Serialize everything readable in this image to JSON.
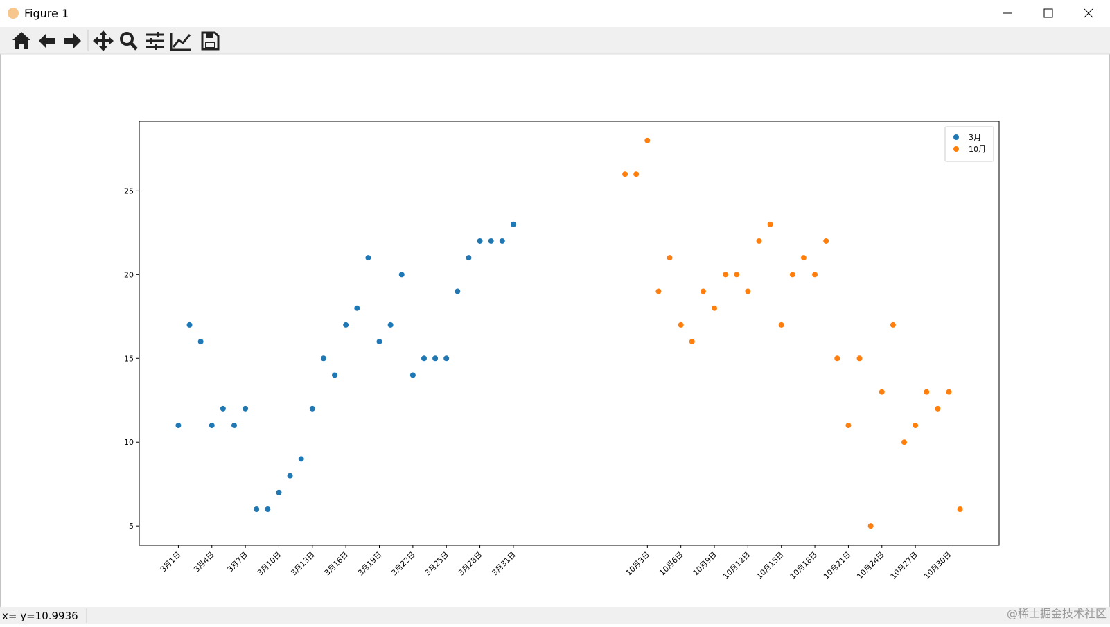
{
  "window": {
    "title": "Figure 1",
    "status": "x= y=10.9936",
    "watermark": "@稀土掘金技术社区"
  },
  "chart_data": {
    "type": "scatter",
    "series": [
      {
        "name": "3月",
        "color": "#1f77b4",
        "x": [
          0,
          1,
          2,
          3,
          4,
          5,
          6,
          7,
          8,
          9,
          10,
          11,
          12,
          13,
          14,
          15,
          16,
          17,
          18,
          19,
          20,
          21,
          22,
          23,
          24,
          25,
          26,
          27,
          28,
          29,
          30
        ],
        "values": [
          11,
          17,
          16,
          11,
          12,
          11,
          12,
          6,
          6,
          7,
          8,
          9,
          12,
          15,
          14,
          17,
          18,
          21,
          16,
          17,
          20,
          14,
          15,
          15,
          15,
          19,
          21,
          22,
          22,
          22,
          23
        ]
      },
      {
        "name": "10月",
        "color": "#ff7f0e",
        "x": [
          40,
          41,
          42,
          43,
          44,
          45,
          46,
          47,
          48,
          49,
          50,
          51,
          52,
          53,
          54,
          55,
          56,
          57,
          58,
          59,
          60,
          61,
          62,
          63,
          64,
          65,
          66,
          67,
          68,
          69,
          70
        ],
        "values": [
          26,
          26,
          28,
          19,
          21,
          17,
          16,
          19,
          18,
          20,
          20,
          19,
          22,
          23,
          17,
          20,
          21,
          20,
          22,
          15,
          11,
          15,
          5,
          13,
          17,
          10,
          11,
          13,
          12,
          13,
          6
        ]
      }
    ],
    "xlim": [
      -3.5,
      73.5
    ],
    "ylim": [
      3.85,
      29.15
    ],
    "xticks": [
      {
        "value": 0,
        "label": "3月1日"
      },
      {
        "value": 3,
        "label": "3月4日"
      },
      {
        "value": 6,
        "label": "3月7日"
      },
      {
        "value": 9,
        "label": "3月10日"
      },
      {
        "value": 12,
        "label": "3月13日"
      },
      {
        "value": 15,
        "label": "3月16日"
      },
      {
        "value": 18,
        "label": "3月19日"
      },
      {
        "value": 21,
        "label": "3月22日"
      },
      {
        "value": 24,
        "label": "3月25日"
      },
      {
        "value": 27,
        "label": "3月28日"
      },
      {
        "value": 30,
        "label": "3月31日"
      },
      {
        "value": 42,
        "label": "10月3日"
      },
      {
        "value": 45,
        "label": "10月6日"
      },
      {
        "value": 48,
        "label": "10月9日"
      },
      {
        "value": 51,
        "label": "10月12日"
      },
      {
        "value": 54,
        "label": "10月15日"
      },
      {
        "value": 57,
        "label": "10月18日"
      },
      {
        "value": 60,
        "label": "10月21日"
      },
      {
        "value": 63,
        "label": "10月24日"
      },
      {
        "value": 66,
        "label": "10月27日"
      },
      {
        "value": 69,
        "label": "10月30日"
      }
    ],
    "yticks": [
      5,
      10,
      15,
      20,
      25
    ],
    "legend": "upper right"
  }
}
